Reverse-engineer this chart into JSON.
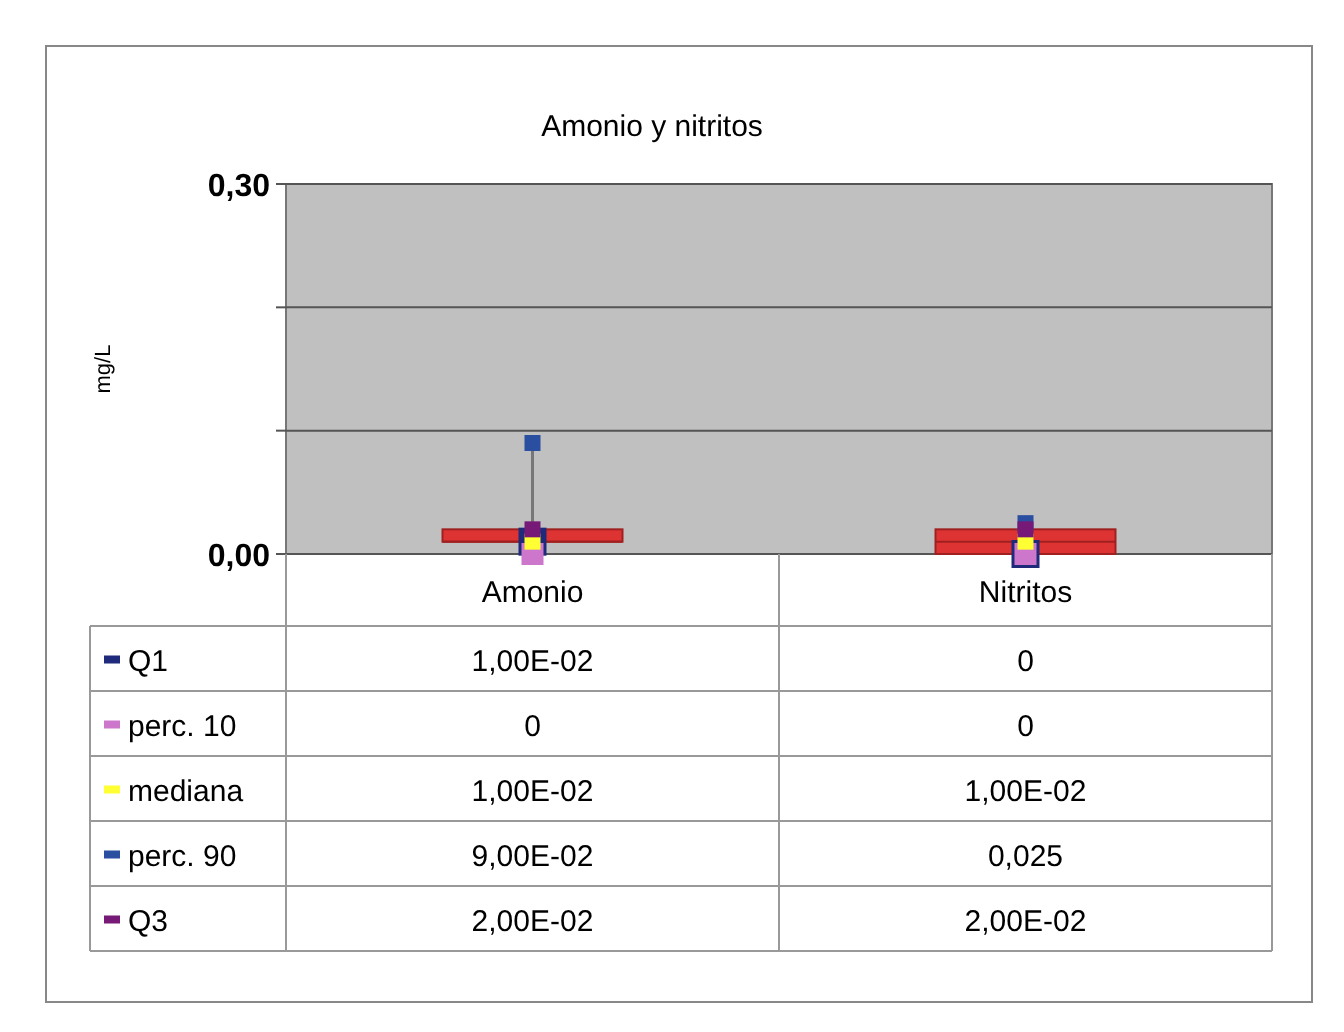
{
  "chart_data": {
    "type": "box",
    "title": "Amonio y nitritos",
    "ylabel": "mg/L",
    "categories": [
      "Amonio",
      "Nitritos"
    ],
    "boxes": [
      {
        "low": 0,
        "q1": 0.01,
        "median": 0.01,
        "q3": 0.02,
        "high": 0.09
      },
      {
        "low": 0,
        "q1": 0,
        "median": 0.01,
        "q3": 0.02,
        "high": 0.025
      }
    ],
    "color": "#dd3333",
    "series": [
      {
        "name": "Q1",
        "type": "scatter",
        "color": "#1f2a7a",
        "values": [
          0.01,
          0
        ],
        "value_labels": [
          "1,00E-02",
          "0"
        ]
      },
      {
        "name": "perc. 10",
        "type": "scatter",
        "color": "#cc77cc",
        "values": [
          0,
          0
        ],
        "value_labels": [
          "0",
          "0"
        ]
      },
      {
        "name": "mediana",
        "type": "scatter",
        "color": "#ffff33",
        "values": [
          0.01,
          0.01
        ],
        "value_labels": [
          "1,00E-02",
          "1,00E-02"
        ]
      },
      {
        "name": "perc. 90",
        "type": "scatter",
        "color": "#2a4ea0",
        "values": [
          0.09,
          0.025
        ],
        "value_labels": [
          "9,00E-02",
          "0,025"
        ]
      },
      {
        "name": "Q3",
        "type": "scatter",
        "color": "#771a77",
        "values": [
          0.02,
          0.02
        ],
        "value_labels": [
          "2,00E-02",
          "2,00E-02"
        ]
      }
    ],
    "ylim": [
      0,
      0.3
    ],
    "yticks": [
      {
        "value": 0,
        "label": "0,00"
      },
      {
        "value": 0.1,
        "label": null
      },
      {
        "value": 0.2,
        "label": null
      },
      {
        "value": 0.3,
        "label": "0,30"
      }
    ],
    "grid": "y",
    "legend": "bottom",
    "marker": "square"
  }
}
